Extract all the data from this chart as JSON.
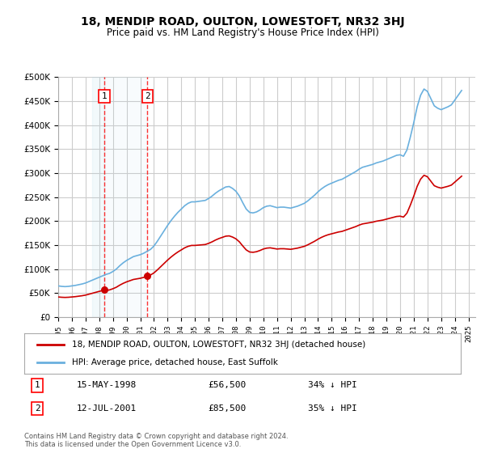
{
  "title": "18, MENDIP ROAD, OULTON, LOWESTOFT, NR32 3HJ",
  "subtitle": "Price paid vs. HM Land Registry's House Price Index (HPI)",
  "background_color": "#ffffff",
  "plot_bg_color": "#ffffff",
  "grid_color": "#cccccc",
  "ylim": [
    0,
    500000
  ],
  "yticks": [
    0,
    50000,
    100000,
    150000,
    200000,
    250000,
    300000,
    350000,
    400000,
    450000,
    500000
  ],
  "xlabel_years": [
    "1995",
    "1996",
    "1997",
    "1998",
    "1999",
    "2000",
    "2001",
    "2002",
    "2003",
    "2004",
    "2005",
    "2006",
    "2007",
    "2008",
    "2009",
    "2010",
    "2011",
    "2012",
    "2013",
    "2014",
    "2015",
    "2016",
    "2017",
    "2018",
    "2019",
    "2020",
    "2021",
    "2022",
    "2023",
    "2024",
    "2025"
  ],
  "hpi_color": "#6ab0de",
  "price_color": "#cc0000",
  "sale1_date": "15-MAY-1998",
  "sale1_price": 56500,
  "sale1_pct": "34%",
  "sale2_date": "12-JUL-2001",
  "sale2_price": 85500,
  "sale2_pct": "35%",
  "legend_label1": "18, MENDIP ROAD, OULTON, LOWESTOFT, NR32 3HJ (detached house)",
  "legend_label2": "HPI: Average price, detached house, East Suffolk",
  "footer": "Contains HM Land Registry data © Crown copyright and database right 2024.\nThis data is licensed under the Open Government Licence v3.0.",
  "hpi_data": {
    "years": [
      1995.0,
      1995.25,
      1995.5,
      1995.75,
      1996.0,
      1996.25,
      1996.5,
      1996.75,
      1997.0,
      1997.25,
      1997.5,
      1997.75,
      1998.0,
      1998.25,
      1998.5,
      1998.75,
      1999.0,
      1999.25,
      1999.5,
      1999.75,
      2000.0,
      2000.25,
      2000.5,
      2000.75,
      2001.0,
      2001.25,
      2001.5,
      2001.75,
      2002.0,
      2002.25,
      2002.5,
      2002.75,
      2003.0,
      2003.25,
      2003.5,
      2003.75,
      2004.0,
      2004.25,
      2004.5,
      2004.75,
      2005.0,
      2005.25,
      2005.5,
      2005.75,
      2006.0,
      2006.25,
      2006.5,
      2006.75,
      2007.0,
      2007.25,
      2007.5,
      2007.75,
      2008.0,
      2008.25,
      2008.5,
      2008.75,
      2009.0,
      2009.25,
      2009.5,
      2009.75,
      2010.0,
      2010.25,
      2010.5,
      2010.75,
      2011.0,
      2011.25,
      2011.5,
      2011.75,
      2012.0,
      2012.25,
      2012.5,
      2012.75,
      2013.0,
      2013.25,
      2013.5,
      2013.75,
      2014.0,
      2014.25,
      2014.5,
      2014.75,
      2015.0,
      2015.25,
      2015.5,
      2015.75,
      2016.0,
      2016.25,
      2016.5,
      2016.75,
      2017.0,
      2017.25,
      2017.5,
      2017.75,
      2018.0,
      2018.25,
      2018.5,
      2018.75,
      2019.0,
      2019.25,
      2019.5,
      2019.75,
      2020.0,
      2020.25,
      2020.5,
      2020.75,
      2021.0,
      2021.25,
      2021.5,
      2021.75,
      2022.0,
      2022.25,
      2022.5,
      2022.75,
      2023.0,
      2023.25,
      2023.5,
      2023.75,
      2024.0,
      2024.25,
      2024.5
    ],
    "values": [
      65000,
      64000,
      63500,
      64000,
      65000,
      66000,
      67500,
      69000,
      71000,
      74000,
      77000,
      80000,
      83000,
      86000,
      89000,
      91000,
      95000,
      100000,
      107000,
      113000,
      118000,
      122000,
      126000,
      128000,
      130000,
      133000,
      137000,
      141000,
      148000,
      158000,
      169000,
      180000,
      191000,
      201000,
      210000,
      218000,
      225000,
      232000,
      237000,
      240000,
      240000,
      241000,
      242000,
      243000,
      247000,
      252000,
      258000,
      263000,
      267000,
      271000,
      272000,
      268000,
      262000,
      252000,
      238000,
      225000,
      218000,
      217000,
      219000,
      223000,
      228000,
      231000,
      232000,
      230000,
      228000,
      229000,
      229000,
      228000,
      227000,
      229000,
      231000,
      234000,
      237000,
      242000,
      248000,
      254000,
      261000,
      267000,
      272000,
      276000,
      279000,
      282000,
      285000,
      287000,
      291000,
      295000,
      299000,
      303000,
      308000,
      312000,
      314000,
      316000,
      318000,
      321000,
      323000,
      325000,
      328000,
      331000,
      334000,
      337000,
      338000,
      335000,
      348000,
      375000,
      405000,
      438000,
      462000,
      475000,
      470000,
      455000,
      440000,
      435000,
      432000,
      435000,
      438000,
      442000,
      452000,
      462000,
      472000
    ]
  },
  "price_data": {
    "years": [
      1998.38,
      2001.53
    ],
    "values": [
      56500,
      85500
    ]
  },
  "price_segments": {
    "years": [
      1998.38,
      2001.53,
      2025.5
    ],
    "values": [
      56500,
      85500,
      280000
    ]
  }
}
